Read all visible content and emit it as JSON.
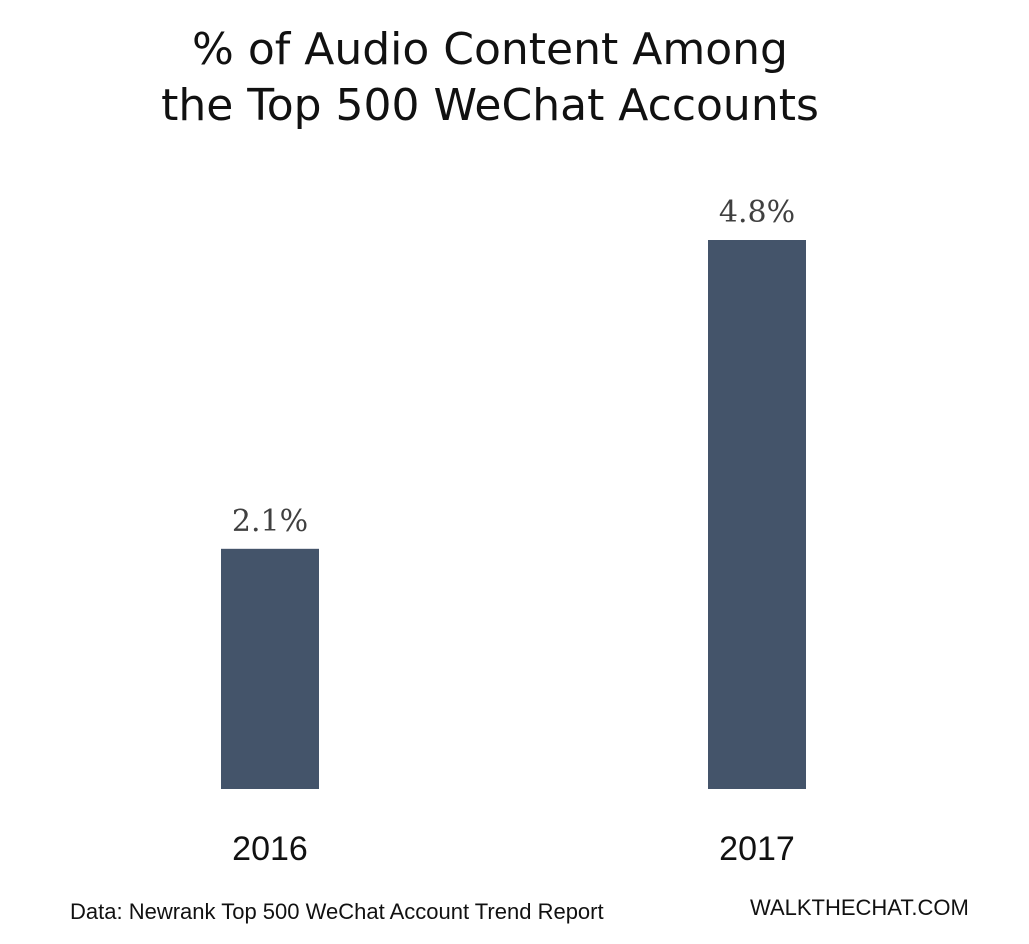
{
  "chart_data": {
    "type": "bar",
    "title_lines": [
      "% of Audio Content Among",
      "the Top 500 WeChat Accounts"
    ],
    "categories": [
      "2016",
      "2017"
    ],
    "values": [
      2.1,
      4.8
    ],
    "value_labels": [
      "2.1%",
      "4.8%"
    ],
    "ylim": [
      0,
      4.8
    ],
    "grid": false,
    "bar_color": "#44546a"
  },
  "footer": {
    "source": "Data: Newrank Top 500 WeChat Account Trend Report",
    "brand": "WALKTHECHAT.COM"
  }
}
